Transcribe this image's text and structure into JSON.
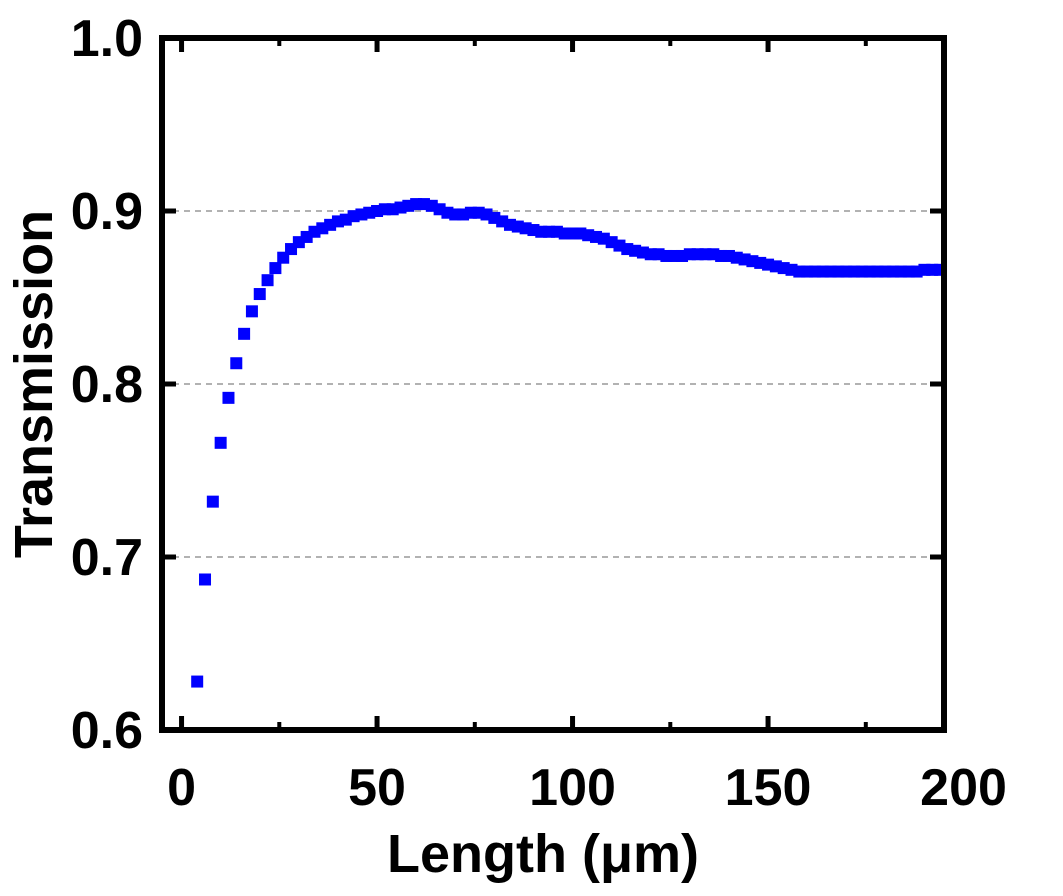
{
  "chart_data": {
    "type": "scatter",
    "xlabel": "Length (μm)",
    "ylabel": "Transmission",
    "xlim": [
      -5,
      195
    ],
    "ylim": [
      0.6,
      1.0
    ],
    "xticks": [
      0,
      50,
      100,
      150,
      200
    ],
    "xtick_labels": [
      "0",
      "50",
      "100",
      "150",
      "200"
    ],
    "yticks": [
      0.6,
      0.7,
      0.8,
      0.9,
      1.0
    ],
    "ytick_labels": [
      "0.6",
      "0.7",
      "0.8",
      "0.9",
      "1.0"
    ],
    "grid": "horizontal dashed at 0.7, 0.8, 0.9",
    "marker": "square",
    "series": [
      {
        "color": "#0000ff",
        "points": [
          [
            4,
            0.628
          ],
          [
            6,
            0.687
          ],
          [
            8,
            0.732
          ],
          [
            10,
            0.766
          ],
          [
            12,
            0.792
          ],
          [
            14,
            0.812
          ],
          [
            16,
            0.829
          ],
          [
            18,
            0.842
          ],
          [
            20,
            0.852
          ],
          [
            22,
            0.86
          ],
          [
            24,
            0.867
          ],
          [
            26,
            0.873
          ],
          [
            28,
            0.878
          ],
          [
            30,
            0.882
          ],
          [
            32,
            0.885
          ],
          [
            34,
            0.888
          ],
          [
            36,
            0.89
          ],
          [
            38,
            0.892
          ],
          [
            40,
            0.894
          ],
          [
            42,
            0.895
          ],
          [
            44,
            0.897
          ],
          [
            46,
            0.898
          ],
          [
            48,
            0.899
          ],
          [
            50,
            0.9
          ],
          [
            52,
            0.901
          ],
          [
            54,
            0.901
          ],
          [
            56,
            0.902
          ],
          [
            58,
            0.903
          ],
          [
            60,
            0.904
          ],
          [
            62,
            0.904
          ],
          [
            64,
            0.903
          ],
          [
            66,
            0.901
          ],
          [
            68,
            0.899
          ],
          [
            70,
            0.898
          ],
          [
            72,
            0.898
          ],
          [
            74,
            0.899
          ],
          [
            76,
            0.899
          ],
          [
            78,
            0.898
          ],
          [
            80,
            0.896
          ],
          [
            82,
            0.894
          ],
          [
            84,
            0.892
          ],
          [
            86,
            0.891
          ],
          [
            88,
            0.89
          ],
          [
            90,
            0.889
          ],
          [
            92,
            0.888
          ],
          [
            94,
            0.888
          ],
          [
            96,
            0.888
          ],
          [
            98,
            0.887
          ],
          [
            100,
            0.887
          ],
          [
            102,
            0.887
          ],
          [
            104,
            0.886
          ],
          [
            106,
            0.885
          ],
          [
            108,
            0.884
          ],
          [
            110,
            0.882
          ],
          [
            112,
            0.88
          ],
          [
            114,
            0.878
          ],
          [
            116,
            0.877
          ],
          [
            118,
            0.876
          ],
          [
            120,
            0.875
          ],
          [
            122,
            0.875
          ],
          [
            124,
            0.874
          ],
          [
            126,
            0.874
          ],
          [
            128,
            0.874
          ],
          [
            130,
            0.875
          ],
          [
            132,
            0.875
          ],
          [
            134,
            0.875
          ],
          [
            136,
            0.875
          ],
          [
            138,
            0.874
          ],
          [
            140,
            0.874
          ],
          [
            142,
            0.873
          ],
          [
            144,
            0.872
          ],
          [
            146,
            0.871
          ],
          [
            148,
            0.87
          ],
          [
            150,
            0.869
          ],
          [
            152,
            0.868
          ],
          [
            154,
            0.867
          ],
          [
            156,
            0.866
          ],
          [
            158,
            0.865
          ],
          [
            160,
            0.865
          ],
          [
            162,
            0.865
          ],
          [
            164,
            0.865
          ],
          [
            166,
            0.865
          ],
          [
            168,
            0.865
          ],
          [
            170,
            0.865
          ],
          [
            172,
            0.865
          ],
          [
            174,
            0.865
          ],
          [
            176,
            0.865
          ],
          [
            178,
            0.865
          ],
          [
            180,
            0.865
          ],
          [
            182,
            0.865
          ],
          [
            184,
            0.865
          ],
          [
            186,
            0.865
          ],
          [
            188,
            0.865
          ],
          [
            190,
            0.866
          ],
          [
            192,
            0.866
          ],
          [
            194,
            0.866
          ]
        ]
      }
    ]
  }
}
